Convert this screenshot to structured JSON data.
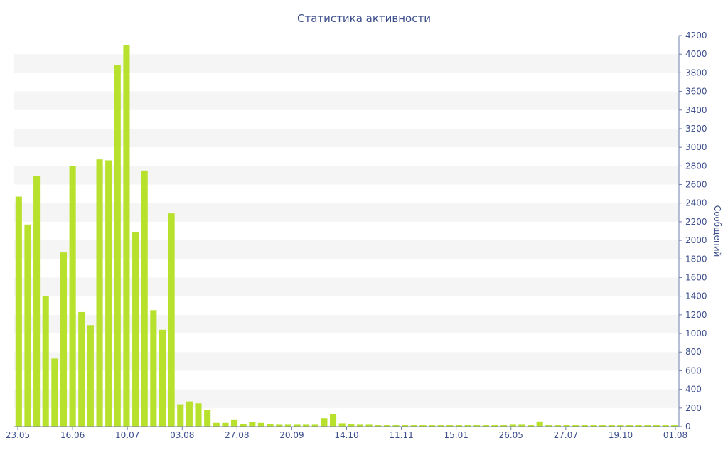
{
  "chart_data": {
    "type": "bar",
    "title": "Статистика активности",
    "ylabel": "Сообщений",
    "xlabel": "",
    "ylim": [
      0,
      4200
    ],
    "y_ticks": [
      0,
      200,
      400,
      600,
      800,
      1000,
      1200,
      1400,
      1600,
      1800,
      2000,
      2200,
      2400,
      2600,
      2800,
      3000,
      3200,
      3400,
      3600,
      3800,
      4000,
      4200
    ],
    "x_tick_labels": [
      "23.05",
      "16.06",
      "10.07",
      "03.08",
      "27.08",
      "20.09",
      "14.10",
      "11.11",
      "15.01",
      "26.05",
      "27.07",
      "19.10",
      "01.08"
    ],
    "y_axis_position": "right",
    "grid": "alternating horizontal bands",
    "bar_color": "#b8e12e",
    "text_color": "#3d4f8c",
    "values": [
      2470,
      2170,
      2690,
      1400,
      730,
      1870,
      2800,
      1230,
      1090,
      2870,
      2860,
      3880,
      4100,
      2090,
      2750,
      1250,
      1040,
      2290,
      240,
      270,
      250,
      180,
      40,
      40,
      70,
      30,
      50,
      40,
      30,
      20,
      20,
      20,
      20,
      20,
      90,
      130,
      35,
      30,
      20,
      20,
      15,
      15,
      15,
      15,
      15,
      15,
      15,
      15,
      15,
      15,
      15,
      15,
      15,
      15,
      15,
      20,
      20,
      15,
      55,
      15,
      15,
      15,
      15,
      15,
      15,
      15,
      15,
      15,
      15,
      15,
      15,
      15,
      15,
      15
    ]
  }
}
